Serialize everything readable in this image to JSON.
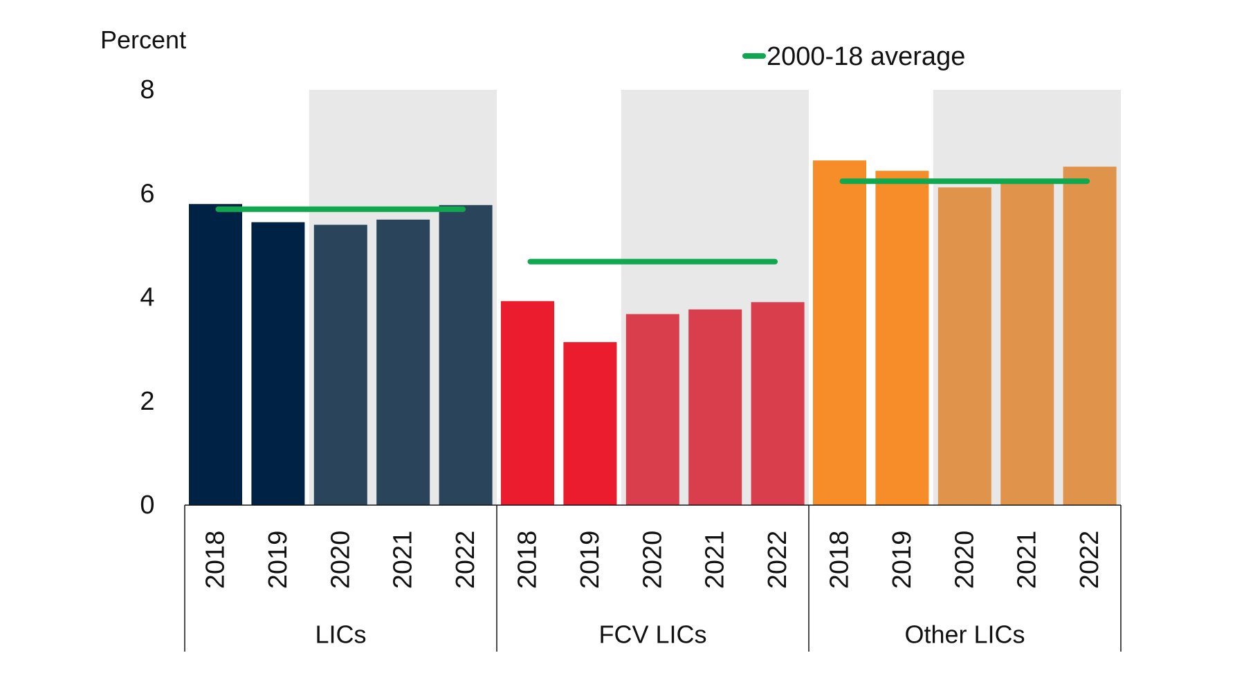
{
  "chart_data": {
    "type": "bar",
    "title": "",
    "ylabel": "Percent",
    "xlabel": "",
    "ylim": [
      0,
      8
    ],
    "yticks": [
      0,
      2,
      4,
      6,
      8
    ],
    "grid": false,
    "legend_position": "top-right",
    "legend": [
      {
        "label": "2000-18 average",
        "type": "line",
        "color": "#10a84e"
      }
    ],
    "shaded_years": [
      "2020",
      "2021",
      "2022"
    ],
    "shade_color": "#e8e8e8",
    "groups": [
      {
        "name": "LICs",
        "categories": [
          "2018",
          "2019",
          "2020",
          "2021",
          "2022"
        ],
        "values": [
          5.8,
          5.45,
          5.4,
          5.5,
          5.78
        ],
        "colors": [
          "#002244",
          "#002244",
          "#2a445c",
          "#2a445c",
          "#2a445c"
        ],
        "average_2000_18": 5.7
      },
      {
        "name": "FCV LICs",
        "categories": [
          "2018",
          "2019",
          "2020",
          "2021",
          "2022"
        ],
        "values": [
          3.93,
          3.14,
          3.68,
          3.77,
          3.91
        ],
        "colors": [
          "#eb1c2d",
          "#eb1c2d",
          "#d93e4c",
          "#d93e4c",
          "#d93e4c"
        ],
        "average_2000_18": 4.69
      },
      {
        "name": "Other LICs",
        "categories": [
          "2018",
          "2019",
          "2020",
          "2021",
          "2022"
        ],
        "values": [
          6.64,
          6.44,
          6.12,
          6.2,
          6.52
        ],
        "colors": [
          "#f78d28",
          "#f78d28",
          "#e0934a",
          "#e0934a",
          "#e0934a"
        ],
        "average_2000_18": 6.24
      }
    ]
  }
}
